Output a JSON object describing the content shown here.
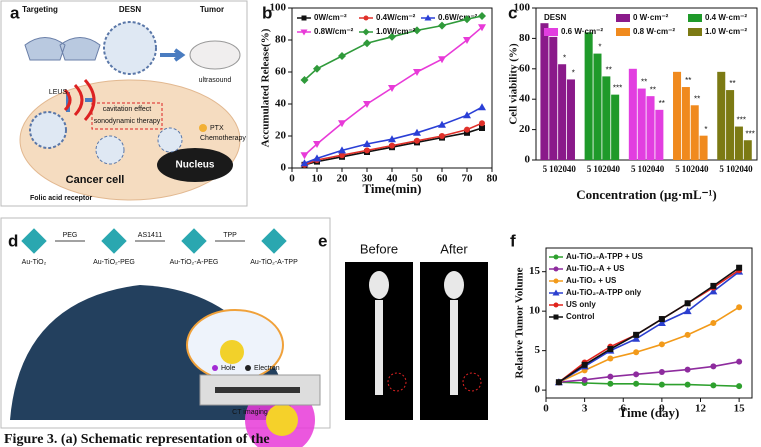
{
  "figure": {
    "panel_labels": [
      "a",
      "b",
      "c",
      "d",
      "e",
      "f"
    ],
    "panel_a": {
      "targeting": "Targeting",
      "desn": "DESN",
      "tumor": "Tumor",
      "ultrasound": "ultrasound",
      "leus": "LEUS",
      "cavitation": "cavitation effect",
      "sonodynamic": "sonodynamic therapy",
      "ptx": "PTX",
      "chemo": "Chemotherapy",
      "nucleus": "Nucleus",
      "cell": "Cancer cell",
      "receptor": "Folic acid receptor"
    },
    "panel_d": {
      "steps": [
        "PEG",
        "AS1411",
        "TPP"
      ],
      "stages": [
        "Au-TiO₂",
        "Au-TiO₂-PEG",
        "Au-TiO₂-A-PEG",
        "Au-TiO₂-A-TPP"
      ],
      "hole": "Hole",
      "electron": "Electron",
      "ct": "CT imaging"
    },
    "panel_e": {
      "before": "Before",
      "after": "After"
    }
  },
  "chart_data": [
    {
      "type": "line",
      "xlabel": "Time(min)",
      "ylabel": "Accumulated Release(%)",
      "x": [
        5,
        10,
        20,
        30,
        40,
        50,
        60,
        70,
        76
      ],
      "xlim": [
        0,
        80
      ],
      "xticks": [
        0,
        10,
        20,
        30,
        40,
        50,
        60,
        70,
        80
      ],
      "ylim": [
        0,
        100
      ],
      "yticks": [
        0,
        20,
        40,
        60,
        80,
        100
      ],
      "legend": "top",
      "series": [
        {
          "name": "0W/cm⁻²",
          "color": "#111111",
          "marker": "square",
          "values": [
            2,
            4,
            7,
            10,
            13,
            16,
            19,
            22,
            25
          ]
        },
        {
          "name": "0.4W/cm⁻²",
          "color": "#e0312a",
          "marker": "circle",
          "values": [
            2,
            5,
            8,
            11,
            14,
            17,
            20,
            24,
            28
          ]
        },
        {
          "name": "0.6W/cm⁻²",
          "color": "#2a3fd6",
          "marker": "triangle-up",
          "values": [
            3,
            6,
            11,
            15,
            18,
            22,
            27,
            33,
            38
          ]
        },
        {
          "name": "0.8W/cm⁻²",
          "color": "#e83ad8",
          "marker": "triangle-down",
          "values": [
            8,
            15,
            28,
            40,
            50,
            60,
            68,
            80,
            88
          ]
        },
        {
          "name": "1.0W/cm⁻²",
          "color": "#2f9a3a",
          "marker": "diamond",
          "values": [
            55,
            62,
            70,
            78,
            82,
            86,
            89,
            93,
            95
          ]
        }
      ]
    },
    {
      "type": "grouped-bar",
      "xlabel": "Concentration (μg·mL⁻¹)",
      "ylabel": "Cell viability (%)",
      "legend_title": "DESN",
      "categories": [
        "5",
        "10",
        "20",
        "40"
      ],
      "ylim": [
        0,
        100
      ],
      "yticks": [
        0,
        20,
        40,
        60,
        80,
        100
      ],
      "series": [
        {
          "name": "0 W·cm⁻²",
          "color": "#8a1a8a",
          "values": [
            90,
            81,
            63,
            53
          ],
          "stars": [
            null,
            null,
            "*",
            "*"
          ]
        },
        {
          "name": "0.4 W·cm⁻²",
          "color": "#1f9a2a",
          "values": [
            84,
            70,
            55,
            43
          ],
          "stars": [
            null,
            "*",
            "**",
            "***"
          ]
        },
        {
          "name": "0.6 W·cm⁻²",
          "color": "#e23ee0",
          "values": [
            60,
            47,
            42,
            33
          ],
          "stars": [
            null,
            "**",
            "**",
            "**"
          ]
        },
        {
          "name": "0.8 W·cm⁻²",
          "color": "#f08a1e",
          "values": [
            58,
            48,
            36,
            16
          ],
          "stars": [
            null,
            "**",
            "**",
            "*"
          ]
        },
        {
          "name": "1.0 W·cm⁻²",
          "color": "#7c7a14",
          "values": [
            58,
            46,
            22,
            13
          ],
          "stars": [
            null,
            "**",
            "***",
            "***"
          ]
        }
      ]
    },
    {
      "type": "line",
      "xlabel": "Time (day)",
      "ylabel": "Relative Tumor Volume",
      "x": [
        1,
        3,
        5,
        7,
        9,
        11,
        13,
        15
      ],
      "xlim": [
        0,
        16
      ],
      "xticks": [
        0,
        3,
        6,
        9,
        12,
        15
      ],
      "ylim": [
        -1,
        18
      ],
      "yticks": [
        0,
        5,
        10,
        15
      ],
      "legend": "upper left",
      "series": [
        {
          "name": "Au-TiO₂-A-TPP + US",
          "color": "#2ea02e",
          "marker": "circle",
          "values": [
            1,
            0.9,
            0.8,
            0.8,
            0.7,
            0.7,
            0.6,
            0.5
          ]
        },
        {
          "name": "Au-TiO₂-A + US",
          "color": "#8e2c9e",
          "marker": "circle",
          "values": [
            1,
            1.3,
            1.7,
            2,
            2.3,
            2.6,
            3,
            3.6
          ]
        },
        {
          "name": "Au-TiO₂ + US",
          "color": "#f29a1a",
          "marker": "circle",
          "values": [
            1,
            2.5,
            4,
            4.8,
            5.8,
            7,
            8.5,
            10.5
          ]
        },
        {
          "name": "Au-TiO₂-A-TPP only",
          "color": "#2b3fcf",
          "marker": "triangle-up",
          "values": [
            1,
            3,
            5,
            6.5,
            8.5,
            10,
            12.5,
            15
          ]
        },
        {
          "name": "US only",
          "color": "#e0231c",
          "marker": "circle",
          "values": [
            1,
            3.5,
            5.5,
            7,
            9,
            11,
            13,
            15.2
          ]
        },
        {
          "name": "Control",
          "color": "#111111",
          "marker": "square",
          "values": [
            1,
            3.2,
            5.2,
            7,
            9,
            11,
            13.2,
            15.5
          ]
        }
      ]
    }
  ],
  "caption": "Figure 3. (a) Schematic representation of the"
}
